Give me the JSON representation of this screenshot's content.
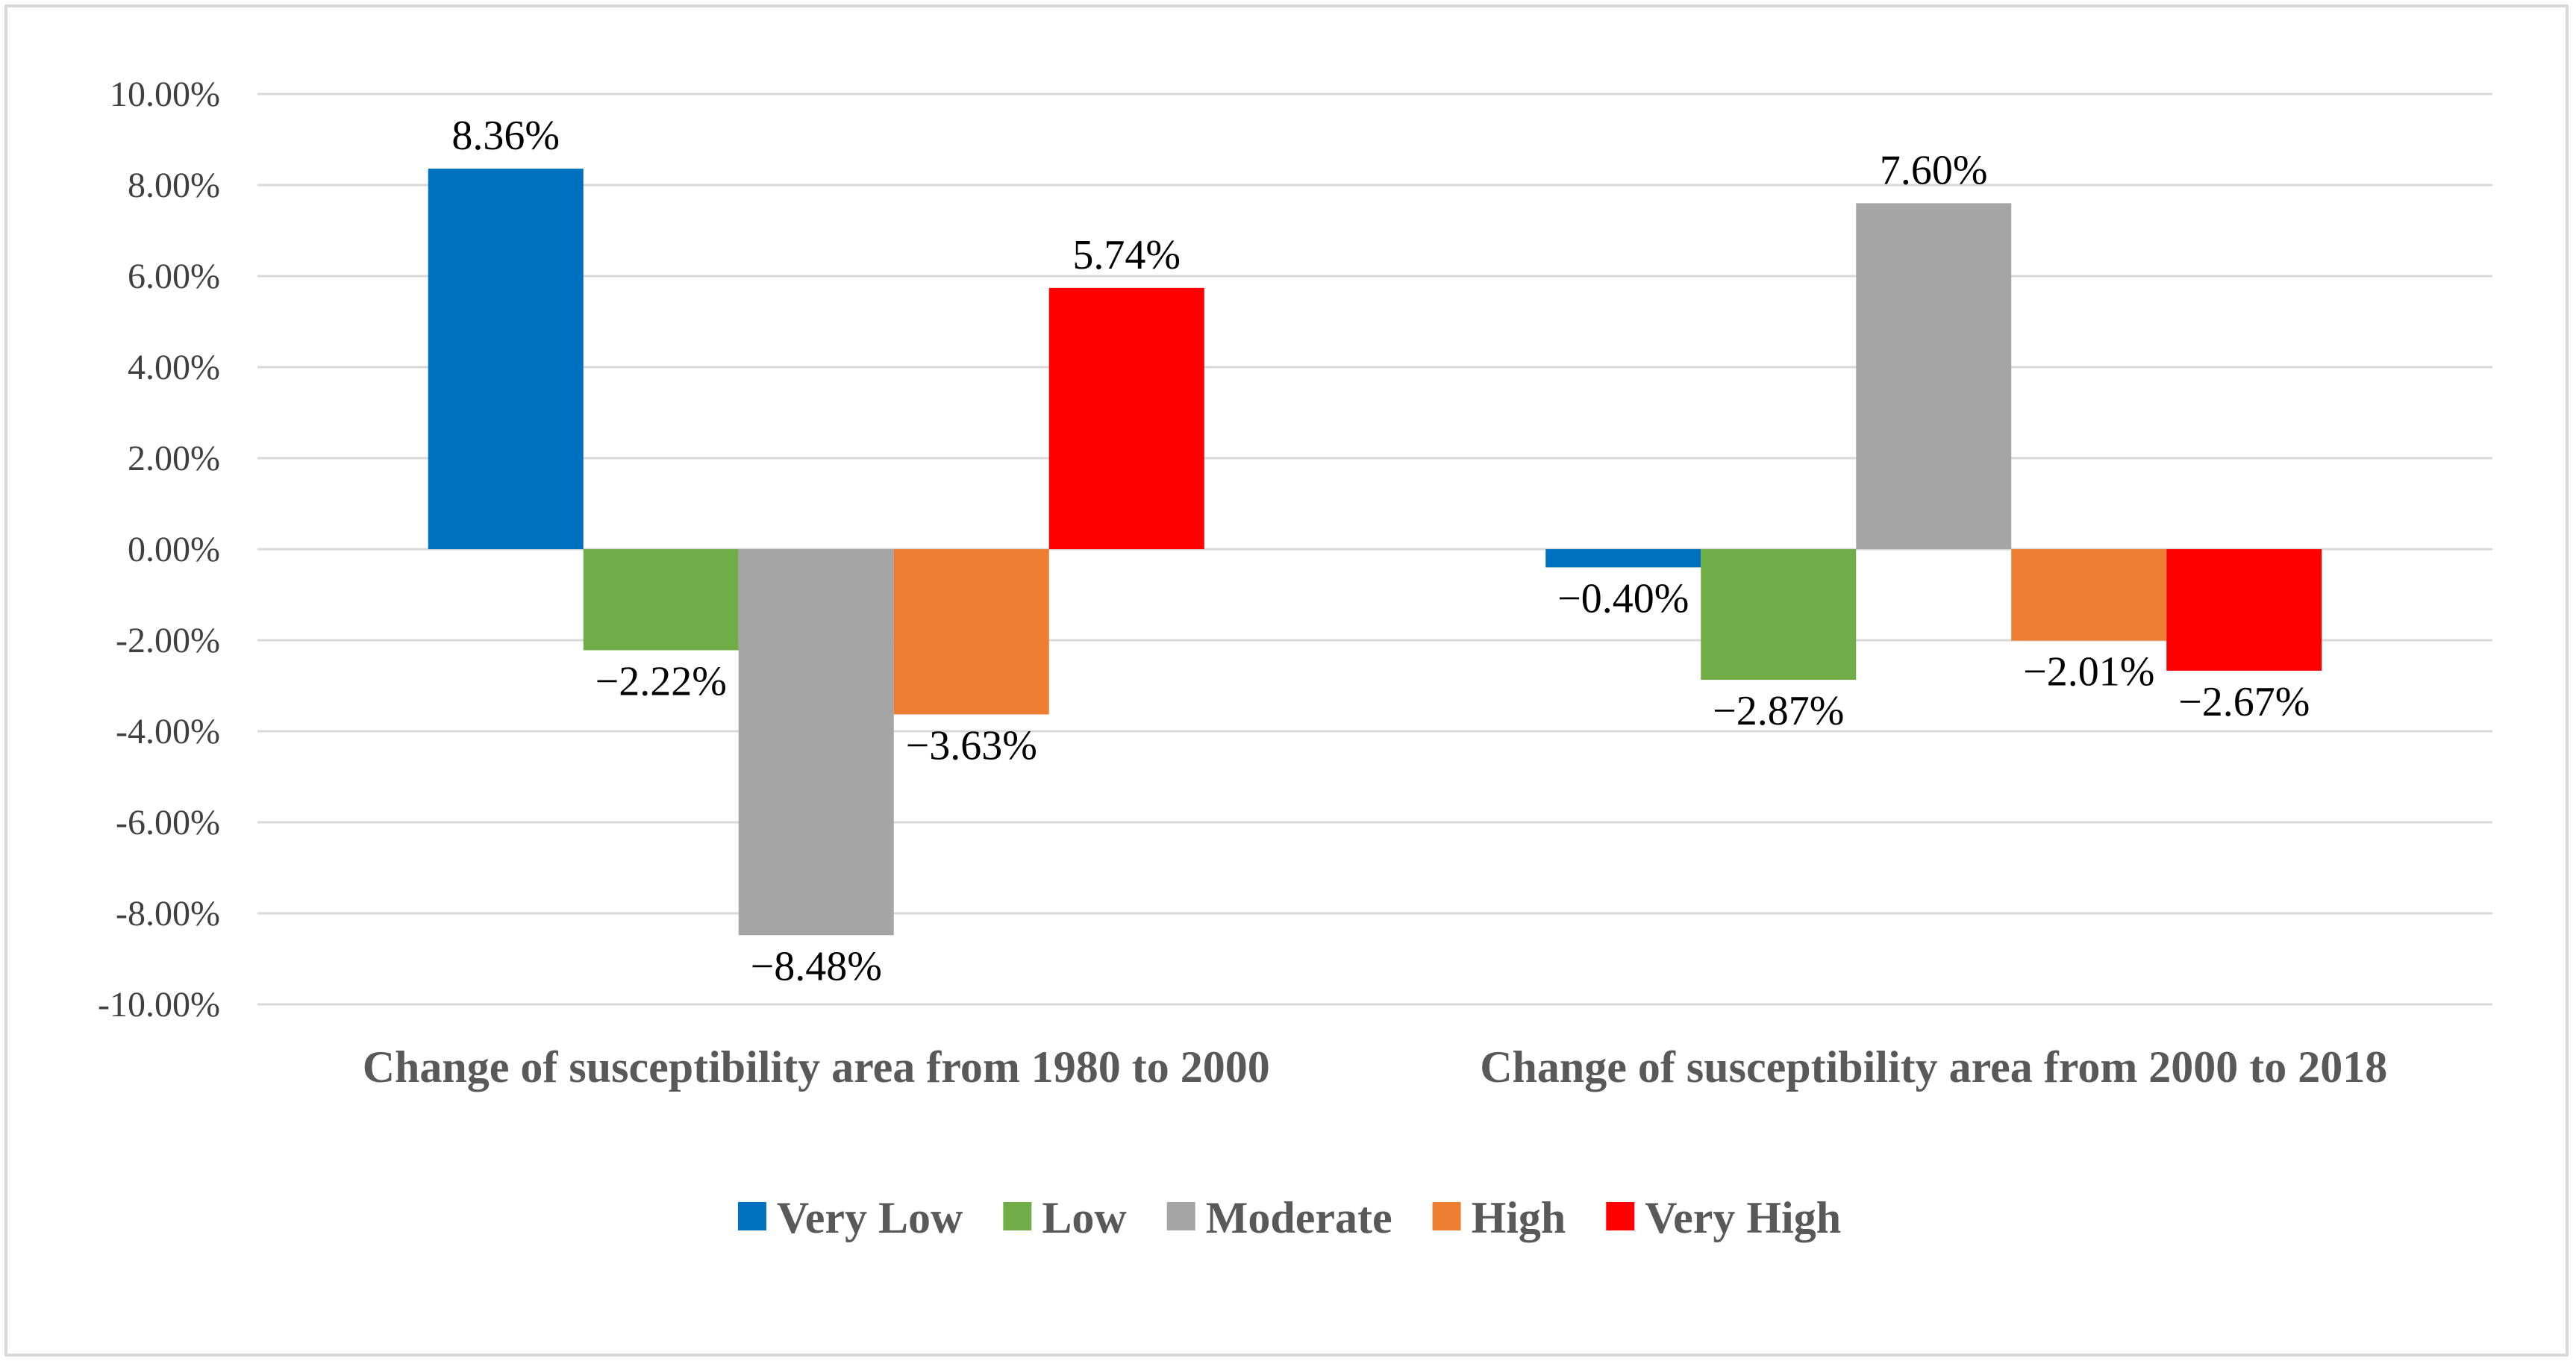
{
  "chart_data": {
    "type": "bar",
    "title": "",
    "xlabel": "",
    "ylabel": "",
    "ylim": [
      -10,
      10
    ],
    "ytick_step": 2,
    "ytick_labels": [
      "10.00%",
      "8.00%",
      "6.00%",
      "4.00%",
      "2.00%",
      "0.00%",
      "-2.00%",
      "-4.00%",
      "-6.00%",
      "-8.00%",
      "-10.00%"
    ],
    "categories": [
      "Change of susceptibility area from 1980 to 2000",
      "Change of susceptibility area from 2000 to 2018"
    ],
    "series": [
      {
        "name": "Very Low",
        "color": "#0070c0",
        "values": [
          8.36,
          -0.4
        ],
        "labels": [
          "8.36%",
          "−0.40%"
        ]
      },
      {
        "name": "Low",
        "color": "#70ad47",
        "values": [
          -2.22,
          -2.87
        ],
        "labels": [
          "−2.22%",
          "−2.87%"
        ]
      },
      {
        "name": "Moderate",
        "color": "#a5a5a5",
        "values": [
          -8.48,
          7.6
        ],
        "labels": [
          "−8.48%",
          "7.60%"
        ]
      },
      {
        "name": "High",
        "color": "#ed7d31",
        "values": [
          -3.63,
          -2.01
        ],
        "labels": [
          "−3.63%",
          "−2.01%"
        ]
      },
      {
        "name": "Very High",
        "color": "#ff0000",
        "values": [
          5.74,
          -2.67
        ],
        "labels": [
          "5.74%",
          "−2.67%"
        ]
      }
    ],
    "legend_position": "bottom",
    "grid": true
  }
}
